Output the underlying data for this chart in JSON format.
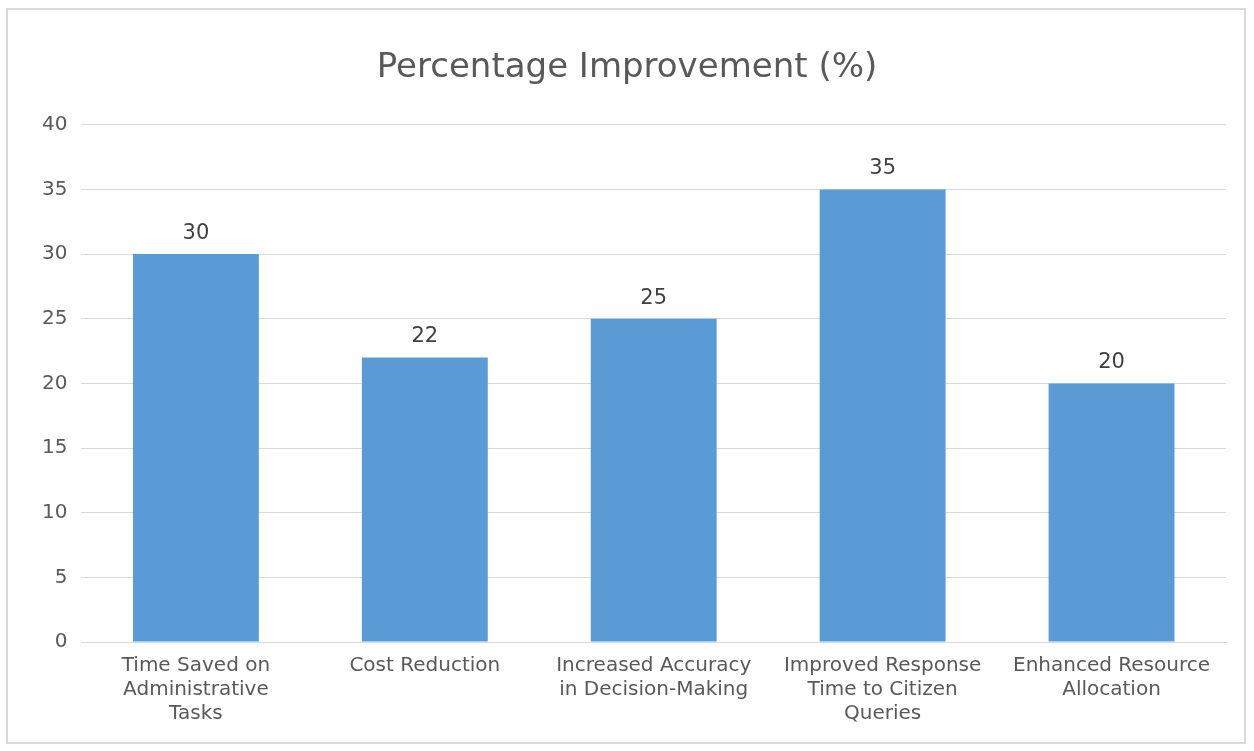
{
  "chart_data": {
    "type": "bar",
    "title": "Percentage Improvement (%)",
    "categories": [
      "Time Saved on Administrative Tasks",
      "Cost Reduction",
      "Increased Accuracy in Decision-Making",
      "Improved Response Time to Citizen Queries",
      "Enhanced Resource Allocation"
    ],
    "values": [
      30,
      22,
      25,
      35,
      20
    ],
    "color": "#5b9bd5",
    "ylim": [
      0,
      40
    ],
    "yticks": [
      0,
      5,
      10,
      15,
      20,
      25,
      30,
      35,
      40
    ],
    "grid": "y",
    "data_labels": true
  }
}
